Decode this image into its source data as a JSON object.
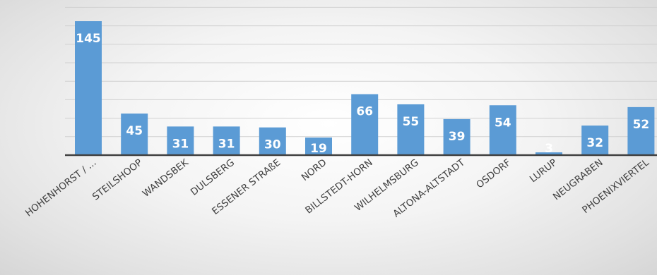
{
  "chart_data": {
    "type": "bar",
    "categories": [
      "HOHENHORST / ...",
      "STEILSHOOP",
      "WANDSBEK",
      "DULSBERG",
      "ESSENER STRAßE",
      "NORD",
      "BILLSTEDT-HORN",
      "WILHELMSBURG",
      "ALTONA-ALTSTADT",
      "OSDORF",
      "LURUP",
      "NEUGRABEN",
      "PHOENIXVIERTEL"
    ],
    "values": [
      145,
      45,
      31,
      31,
      30,
      19,
      66,
      55,
      39,
      54,
      3,
      32,
      52
    ],
    "ylim": [
      0,
      160
    ],
    "grid": true,
    "bar_color": "#5b9bd5",
    "grid_color": "#d0d0d0",
    "axis_color": "#404040",
    "label_color": "#ffffff"
  }
}
